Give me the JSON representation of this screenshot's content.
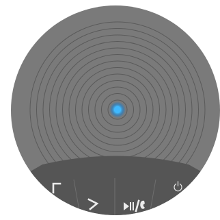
{
  "device": {
    "body_color": "#7a7a7a",
    "ring_color": "#5a5a5a",
    "button_bar_color": "#555555",
    "button_divider_color": "#6e6e6e",
    "icon_color": "#ececec",
    "led_color": "#3fb8ff"
  },
  "buttons": [
    {
      "name": "volume-down-button",
      "icon": "chevron-left-icon"
    },
    {
      "name": "volume-up-button",
      "icon": "chevron-right-icon"
    },
    {
      "name": "play-pause-call-button",
      "icon": "play-pause-phone-icon"
    },
    {
      "name": "power-button",
      "icon": "power-icon"
    }
  ]
}
